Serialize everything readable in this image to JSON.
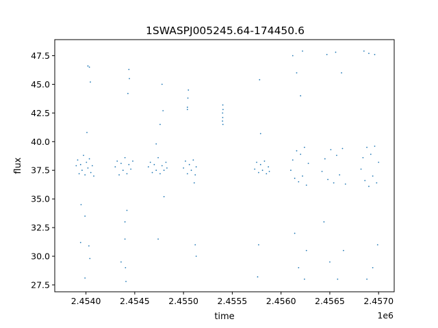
{
  "chart_data": {
    "type": "scatter",
    "title": "1SWASPJ005245.64-174450.6",
    "xlabel": "time",
    "ylabel": "flux",
    "x_offset_label": "1e6",
    "xlim": [
      2453680,
      2457160
    ],
    "ylim": [
      26.9,
      48.9
    ],
    "x_ticks": [
      2454000,
      2454500,
      2455000,
      2455500,
      2456000,
      2456500,
      2457000
    ],
    "x_tick_labels": [
      "2.4540",
      "2.4545",
      "2.4550",
      "2.4555",
      "2.4560",
      "2.4565",
      "2.4570"
    ],
    "y_ticks": [
      27.5,
      30.0,
      32.5,
      35.0,
      37.5,
      40.0,
      42.5,
      45.0,
      47.5
    ],
    "y_tick_labels": [
      "27.5",
      "30.0",
      "32.5",
      "35.0",
      "37.5",
      "40.0",
      "42.5",
      "45.0",
      "47.5"
    ],
    "grid": false,
    "color": "#1f77b4",
    "series": [
      {
        "x_range": [
          2453900,
          2454080
        ],
        "points": [
          [
            2453900,
            37.9
          ],
          [
            2453915,
            38.4
          ],
          [
            2453930,
            37.2
          ],
          [
            2453945,
            38.0
          ],
          [
            2453960,
            37.5
          ],
          [
            2453975,
            38.8
          ],
          [
            2453990,
            37.1
          ],
          [
            2454005,
            38.2
          ],
          [
            2454020,
            37.7
          ],
          [
            2454035,
            38.5
          ],
          [
            2454050,
            37.3
          ],
          [
            2454065,
            37.9
          ],
          [
            2454080,
            37.0
          ],
          [
            2453950,
            34.5
          ],
          [
            2453990,
            33.5
          ],
          [
            2454010,
            40.8
          ],
          [
            2454020,
            46.6
          ],
          [
            2454035,
            46.5
          ],
          [
            2454045,
            45.2
          ],
          [
            2454030,
            30.9
          ],
          [
            2454040,
            29.8
          ],
          [
            2453945,
            31.2
          ],
          [
            2453990,
            28.1
          ]
        ]
      },
      {
        "x_range": [
          2454300,
          2454480
        ],
        "points": [
          [
            2454300,
            37.8
          ],
          [
            2454320,
            38.3
          ],
          [
            2454340,
            37.1
          ],
          [
            2454360,
            38.1
          ],
          [
            2454380,
            37.5
          ],
          [
            2454400,
            38.6
          ],
          [
            2454420,
            37.2
          ],
          [
            2454440,
            38.0
          ],
          [
            2454460,
            37.6
          ],
          [
            2454480,
            38.3
          ],
          [
            2454400,
            33.0
          ],
          [
            2454400,
            31.5
          ],
          [
            2454405,
            29.0
          ],
          [
            2454410,
            27.8
          ],
          [
            2454440,
            46.3
          ],
          [
            2454445,
            45.5
          ],
          [
            2454430,
            44.2
          ],
          [
            2454420,
            34.0
          ],
          [
            2454360,
            29.5
          ]
        ]
      },
      {
        "x_range": [
          2454640,
          2454830
        ],
        "points": [
          [
            2454640,
            37.8
          ],
          [
            2454660,
            38.2
          ],
          [
            2454680,
            37.3
          ],
          [
            2454700,
            38.0
          ],
          [
            2454720,
            37.5
          ],
          [
            2454740,
            38.6
          ],
          [
            2454760,
            37.2
          ],
          [
            2454780,
            37.9
          ],
          [
            2454800,
            37.5
          ],
          [
            2454820,
            38.2
          ],
          [
            2454830,
            37.7
          ],
          [
            2454780,
            45.0
          ],
          [
            2454790,
            42.7
          ],
          [
            2454760,
            41.5
          ],
          [
            2454740,
            31.5
          ],
          [
            2454800,
            35.2
          ],
          [
            2454720,
            39.8
          ]
        ]
      },
      {
        "x_range": [
          2455000,
          2455130
        ],
        "points": [
          [
            2455000,
            37.7
          ],
          [
            2455020,
            38.3
          ],
          [
            2455040,
            37.2
          ],
          [
            2455060,
            38.0
          ],
          [
            2455080,
            37.5
          ],
          [
            2455100,
            38.4
          ],
          [
            2455120,
            37.1
          ],
          [
            2455130,
            37.8
          ],
          [
            2455040,
            43.0
          ],
          [
            2455045,
            43.8
          ],
          [
            2455050,
            44.5
          ],
          [
            2455040,
            42.8
          ],
          [
            2455110,
            36.4
          ],
          [
            2455120,
            31.0
          ],
          [
            2455130,
            30.0
          ]
        ]
      },
      {
        "x_range": [
          2455400,
          2455405
        ],
        "points": [
          [
            2455400,
            41.8
          ],
          [
            2455401,
            42.5
          ],
          [
            2455402,
            42.1
          ],
          [
            2455403,
            43.2
          ],
          [
            2455404,
            41.5
          ],
          [
            2455405,
            42.8
          ]
        ]
      },
      {
        "x_range": [
          2455730,
          2455880
        ],
        "points": [
          [
            2455730,
            37.6
          ],
          [
            2455750,
            38.2
          ],
          [
            2455770,
            37.3
          ],
          [
            2455790,
            38.0
          ],
          [
            2455810,
            37.5
          ],
          [
            2455830,
            38.3
          ],
          [
            2455850,
            37.2
          ],
          [
            2455870,
            37.8
          ],
          [
            2455880,
            37.4
          ],
          [
            2455780,
            45.4
          ],
          [
            2455770,
            31.0
          ],
          [
            2455760,
            28.2
          ],
          [
            2455790,
            40.7
          ]
        ]
      },
      {
        "x_range": [
          2456100,
          2456280
        ],
        "points": [
          [
            2456100,
            37.5
          ],
          [
            2456120,
            38.4
          ],
          [
            2456140,
            36.8
          ],
          [
            2456160,
            39.2
          ],
          [
            2456180,
            36.5
          ],
          [
            2456200,
            38.9
          ],
          [
            2456220,
            37.0
          ],
          [
            2456240,
            39.5
          ],
          [
            2456260,
            36.2
          ],
          [
            2456280,
            38.1
          ],
          [
            2456120,
            47.5
          ],
          [
            2456160,
            46.0
          ],
          [
            2456220,
            47.9
          ],
          [
            2456200,
            44.0
          ],
          [
            2456140,
            32.0
          ],
          [
            2456180,
            29.0
          ],
          [
            2456240,
            28.0
          ],
          [
            2456260,
            30.5
          ]
        ]
      },
      {
        "x_range": [
          2456420,
          2456660
        ],
        "points": [
          [
            2456420,
            37.4
          ],
          [
            2456450,
            38.5
          ],
          [
            2456480,
            36.7
          ],
          [
            2456510,
            39.3
          ],
          [
            2456540,
            36.4
          ],
          [
            2456570,
            38.8
          ],
          [
            2456600,
            37.1
          ],
          [
            2456630,
            39.4
          ],
          [
            2456660,
            36.3
          ],
          [
            2456470,
            47.6
          ],
          [
            2456560,
            47.8
          ],
          [
            2456620,
            46.0
          ],
          [
            2456440,
            33.0
          ],
          [
            2456500,
            29.5
          ],
          [
            2456580,
            28.0
          ],
          [
            2456640,
            30.5
          ]
        ]
      },
      {
        "x_range": [
          2456820,
          2457000
        ],
        "points": [
          [
            2456820,
            37.6
          ],
          [
            2456840,
            38.6
          ],
          [
            2456860,
            36.6
          ],
          [
            2456880,
            39.5
          ],
          [
            2456900,
            36.1
          ],
          [
            2456920,
            38.9
          ],
          [
            2456940,
            37.0
          ],
          [
            2456960,
            39.6
          ],
          [
            2456980,
            36.4
          ],
          [
            2457000,
            38.2
          ],
          [
            2456850,
            47.9
          ],
          [
            2456900,
            47.7
          ],
          [
            2456960,
            47.6
          ],
          [
            2456880,
            28.0
          ],
          [
            2456940,
            29.0
          ],
          [
            2456990,
            31.0
          ]
        ]
      }
    ]
  }
}
